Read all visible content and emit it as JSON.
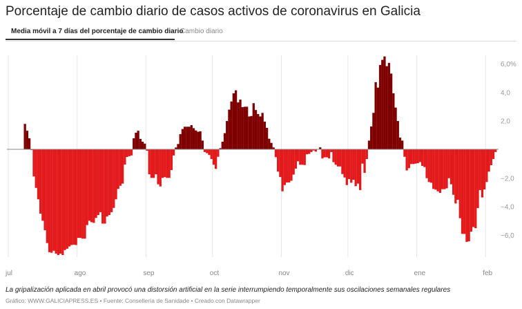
{
  "header": {
    "title": "Porcentaje de cambio diario de casos activos de coronavirus en Galicia"
  },
  "tabs": [
    {
      "label": "Media móvil a 7 días del porcentaje de cambio diario",
      "active": true
    },
    {
      "label": "Cambio diario",
      "active": false
    }
  ],
  "footer": {
    "note": "La gripalización aplicada en abril provocó una distorsión artificial en la serie interrumpiendo temporalmente sus oscilaciones semanales regulares",
    "source": "Gráfico: WWW.GALICIAPRESS.ES • Fuente: Consellería de Sanidade • Creado con Datawrapper"
  },
  "chart_data": {
    "type": "bar",
    "title": "Porcentaje de cambio diario de casos activos de coronavirus en Galicia",
    "xlabel": "",
    "ylabel": "",
    "ylim": [
      -7.5,
      6.6
    ],
    "grid": "vertical at month starts",
    "colors": {
      "positive": "#7f0000",
      "negative": "#e31a1c",
      "zero_line": "#888888",
      "grid": "#e6e6e6"
    },
    "x_ticks": [
      {
        "date": "2020-07-01",
        "label": "jul"
      },
      {
        "date": "2020-08-01",
        "label": "ago"
      },
      {
        "date": "2020-09-01",
        "label": "sep"
      },
      {
        "date": "2020-10-01",
        "label": "oct"
      },
      {
        "date": "2020-11-01",
        "label": "nov"
      },
      {
        "date": "2020-12-01",
        "label": "dic"
      },
      {
        "date": "2021-01-01",
        "label": "ene"
      },
      {
        "date": "2021-02-01",
        "label": "feb"
      }
    ],
    "y_ticks": [
      {
        "value": 6,
        "label": "6,0%"
      },
      {
        "value": 4,
        "label": "4,0"
      },
      {
        "value": 2,
        "label": "2,0"
      },
      {
        "value": -2,
        "label": "−2,0"
      },
      {
        "value": -4,
        "label": "−4,0"
      },
      {
        "value": -6,
        "label": "−6,0"
      }
    ],
    "x": [
      "2020-07-08",
      "2020-07-09",
      "2020-07-10",
      "2020-07-11",
      "2020-07-12",
      "2020-07-13",
      "2020-07-14",
      "2020-07-15",
      "2020-07-16",
      "2020-07-17",
      "2020-07-18",
      "2020-07-19",
      "2020-07-20",
      "2020-07-21",
      "2020-07-22",
      "2020-07-23",
      "2020-07-24",
      "2020-07-25",
      "2020-07-26",
      "2020-07-27",
      "2020-07-28",
      "2020-07-29",
      "2020-07-30",
      "2020-07-31",
      "2020-08-01",
      "2020-08-02",
      "2020-08-03",
      "2020-08-04",
      "2020-08-05",
      "2020-08-06",
      "2020-08-07",
      "2020-08-08",
      "2020-08-09",
      "2020-08-10",
      "2020-08-11",
      "2020-08-12",
      "2020-08-13",
      "2020-08-14",
      "2020-08-15",
      "2020-08-16",
      "2020-08-17",
      "2020-08-18",
      "2020-08-19",
      "2020-08-20",
      "2020-08-21",
      "2020-08-22",
      "2020-08-23",
      "2020-08-24",
      "2020-08-25",
      "2020-08-26",
      "2020-08-27",
      "2020-08-28",
      "2020-08-29",
      "2020-08-30",
      "2020-08-31",
      "2020-09-01",
      "2020-09-02",
      "2020-09-03",
      "2020-09-04",
      "2020-09-05",
      "2020-09-06",
      "2020-09-07",
      "2020-09-08",
      "2020-09-09",
      "2020-09-10",
      "2020-09-11",
      "2020-09-12",
      "2020-09-13",
      "2020-09-14",
      "2020-09-15",
      "2020-09-16",
      "2020-09-17",
      "2020-09-18",
      "2020-09-19",
      "2020-09-20",
      "2020-09-21",
      "2020-09-22",
      "2020-09-23",
      "2020-09-24",
      "2020-09-25",
      "2020-09-26",
      "2020-09-27",
      "2020-09-28",
      "2020-09-29",
      "2020-09-30",
      "2020-10-01",
      "2020-10-02",
      "2020-10-03",
      "2020-10-04",
      "2020-10-05",
      "2020-10-06",
      "2020-10-07",
      "2020-10-08",
      "2020-10-09",
      "2020-10-10",
      "2020-10-11",
      "2020-10-12",
      "2020-10-13",
      "2020-10-14",
      "2020-10-15",
      "2020-10-16",
      "2020-10-17",
      "2020-10-18",
      "2020-10-19",
      "2020-10-20",
      "2020-10-21",
      "2020-10-22",
      "2020-10-23",
      "2020-10-24",
      "2020-10-25",
      "2020-10-26",
      "2020-10-27",
      "2020-10-28",
      "2020-10-29",
      "2020-10-30",
      "2020-10-31",
      "2020-11-01",
      "2020-11-02",
      "2020-11-03",
      "2020-11-04",
      "2020-11-05",
      "2020-11-06",
      "2020-11-07",
      "2020-11-08",
      "2020-11-09",
      "2020-11-10",
      "2020-11-11",
      "2020-11-12",
      "2020-11-13",
      "2020-11-14",
      "2020-11-15",
      "2020-11-16",
      "2020-11-17",
      "2020-11-18",
      "2020-11-19",
      "2020-11-20",
      "2020-11-21",
      "2020-11-22",
      "2020-11-23",
      "2020-11-24",
      "2020-11-25",
      "2020-11-26",
      "2020-11-27",
      "2020-11-28",
      "2020-11-29",
      "2020-11-30",
      "2020-12-01",
      "2020-12-02",
      "2020-12-03",
      "2020-12-04",
      "2020-12-05",
      "2020-12-06",
      "2020-12-07",
      "2020-12-08",
      "2020-12-09",
      "2020-12-10",
      "2020-12-11",
      "2020-12-12",
      "2020-12-13",
      "2020-12-14",
      "2020-12-15",
      "2020-12-16",
      "2020-12-17",
      "2020-12-18",
      "2020-12-19",
      "2020-12-20",
      "2020-12-21",
      "2020-12-22",
      "2020-12-23",
      "2020-12-24",
      "2020-12-25",
      "2020-12-26",
      "2020-12-27",
      "2020-12-28",
      "2020-12-29",
      "2020-12-30",
      "2020-12-31",
      "2021-01-01",
      "2021-01-02",
      "2021-01-03",
      "2021-01-04",
      "2021-01-05",
      "2021-01-06",
      "2021-01-07",
      "2021-01-08",
      "2021-01-09",
      "2021-01-10",
      "2021-01-11",
      "2021-01-12",
      "2021-01-13",
      "2021-01-14",
      "2021-01-15",
      "2021-01-16",
      "2021-01-17",
      "2021-01-18",
      "2021-01-19",
      "2021-01-20",
      "2021-01-21",
      "2021-01-22",
      "2021-01-23",
      "2021-01-24",
      "2021-01-25",
      "2021-01-26",
      "2021-01-27",
      "2021-01-28",
      "2021-01-29",
      "2021-01-30",
      "2021-01-31",
      "2021-02-01",
      "2021-02-02",
      "2021-02-03",
      "2021-02-04",
      "2021-02-05"
    ],
    "values": [
      1.78,
      1.3,
      0.77,
      -0.05,
      -1.9,
      -2.7,
      -3.5,
      -4.5,
      -5.0,
      -5.66,
      -6.56,
      -7.2,
      -7.24,
      -7.1,
      -7.3,
      -7.4,
      -7.3,
      -7.4,
      -7.05,
      -6.96,
      -6.8,
      -6.7,
      -6.67,
      -6.7,
      -6.2,
      -6.2,
      -6.25,
      -6.25,
      -5.3,
      -5.0,
      -5.1,
      -5.15,
      -4.8,
      -4.6,
      -4.4,
      -5.2,
      -5.2,
      -4.7,
      -4.6,
      -4.4,
      -4.1,
      -3.5,
      -2.77,
      -2.55,
      -2.4,
      -1.07,
      -0.54,
      -0.48,
      -0.43,
      0.77,
      1.16,
      1.3,
      0.73,
      0.53,
      0.4,
      -0.1,
      -1.75,
      -2.0,
      -2.0,
      -1.75,
      -2.45,
      -2.6,
      -2.0,
      -1.95,
      -2.0,
      -2.0,
      -1.45,
      -0.43,
      0.13,
      0.37,
      1.06,
      1.42,
      1.58,
      1.58,
      1.58,
      1.69,
      1.48,
      1.32,
      1.23,
      1.26,
      0.61,
      -0.19,
      -0.27,
      -0.4,
      -0.68,
      -1.08,
      -1.37,
      -0.52,
      0.08,
      0.53,
      1.13,
      1.98,
      2.78,
      3.35,
      3.92,
      4.13,
      3.28,
      3.48,
      2.95,
      2.98,
      2.98,
      2.3,
      2.33,
      3.23,
      2.75,
      2.47,
      2.3,
      2.55,
      1.94,
      1.5,
      0.74,
      0.45,
      0.13,
      -0.55,
      -1.56,
      -1.94,
      -2.94,
      -2.5,
      -2.32,
      -2.32,
      -2.2,
      -1.77,
      -1.35,
      -0.84,
      -1.08,
      -1.08,
      -1.1,
      -0.35,
      -0.32,
      -0.19,
      -0.08,
      -0.16,
      0,
      0.14,
      -0.64,
      -0.56,
      -0.56,
      -0.64,
      -0.19,
      -0.9,
      -1.08,
      -1.2,
      -1.2,
      -1.73,
      -1.97,
      -2.5,
      -2.08,
      -2.34,
      -2.13,
      -2.58,
      -2.4,
      -2.85,
      -1.0,
      -1.65,
      -0.68,
      0.61,
      1.6,
      2.55,
      4.7,
      4.32,
      5.9,
      6.26,
      6.5,
      5.82,
      6.05,
      5.3,
      3.92,
      2.92,
      1.98,
      0.82,
      0.61,
      -0.52,
      -1.48,
      -1.32,
      -1.03,
      -1.03,
      -1.0,
      -0.97,
      -0.89,
      -1.16,
      -1.24,
      -2.02,
      -2.29,
      -2.34,
      -2.77,
      -2.82,
      -2.94,
      -3.05,
      -2.79,
      -2.79,
      -2.73,
      -2.02,
      -2.45,
      -3.18,
      -3.79,
      -3.53,
      -4.82,
      -5.92,
      -5.92,
      -6.48,
      -6.44,
      -5.76,
      -5.44,
      -5.52,
      -4.11,
      -2.85,
      -3.37,
      -2.81,
      -2.29,
      -1.56,
      -1.11,
      -0.68,
      -0.19
    ]
  }
}
